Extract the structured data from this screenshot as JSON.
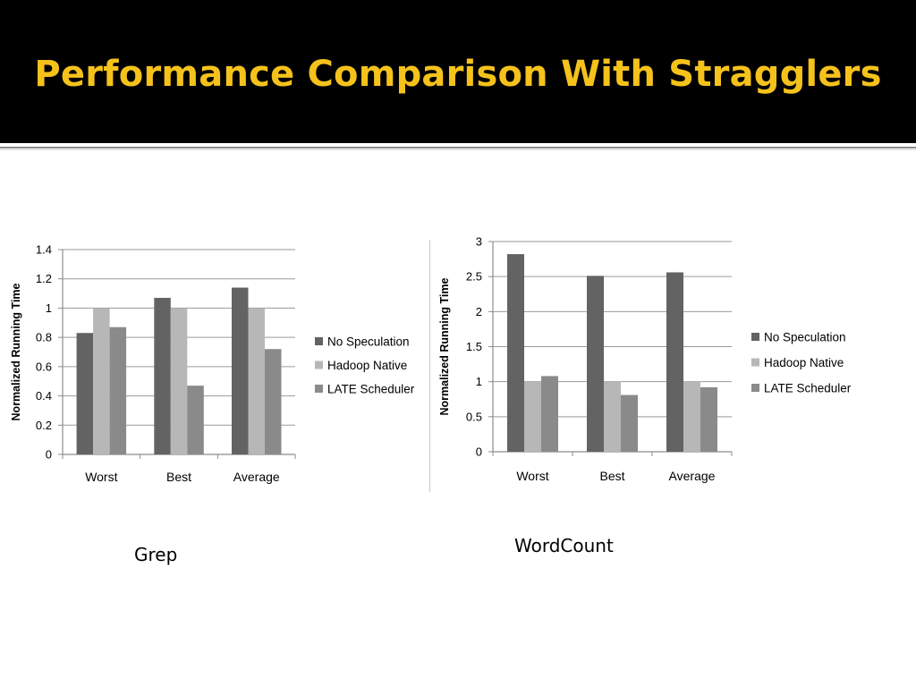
{
  "slide": {
    "title": "Performance Comparison With Stragglers"
  },
  "colors": {
    "title_bg": "#000000",
    "title_text": "#f5c21b",
    "no_speculation": "#636363",
    "hadoop_native": "#b7b7b7",
    "late_scheduler": "#8a8a8a"
  },
  "captions": {
    "grep": "Grep",
    "wordcount": "WordCount"
  },
  "chart_data": [
    {
      "type": "bar",
      "caption": "Grep",
      "title": "",
      "xlabel": "",
      "ylabel": "Normalized Running Time",
      "categories": [
        "Worst",
        "Best",
        "Average"
      ],
      "yticks": [
        "0",
        "0.2",
        "0.4",
        "0.6",
        "0.8",
        "1",
        "1.2",
        "1.4"
      ],
      "ylim": [
        0,
        1.4
      ],
      "grid": true,
      "legend": "right",
      "series": [
        {
          "name": "No Speculation",
          "values": [
            0.83,
            1.07,
            1.14
          ]
        },
        {
          "name": "Hadoop Native",
          "values": [
            1.0,
            1.0,
            1.0
          ]
        },
        {
          "name": "LATE Scheduler",
          "values": [
            0.87,
            0.47,
            0.72
          ]
        }
      ]
    },
    {
      "type": "bar",
      "caption": "WordCount",
      "title": "",
      "xlabel": "",
      "ylabel": "Normalized Running Time",
      "categories": [
        "Worst",
        "Best",
        "Average"
      ],
      "yticks": [
        "0",
        "0.5",
        "1",
        "1.5",
        "2",
        "2.5",
        "3"
      ],
      "ylim": [
        0,
        3
      ],
      "grid": true,
      "legend": "right",
      "series": [
        {
          "name": "No Speculation",
          "values": [
            2.82,
            2.51,
            2.56
          ]
        },
        {
          "name": "Hadoop Native",
          "values": [
            1.0,
            1.0,
            1.0
          ]
        },
        {
          "name": "LATE Scheduler",
          "values": [
            1.08,
            0.81,
            0.92
          ]
        }
      ]
    }
  ]
}
